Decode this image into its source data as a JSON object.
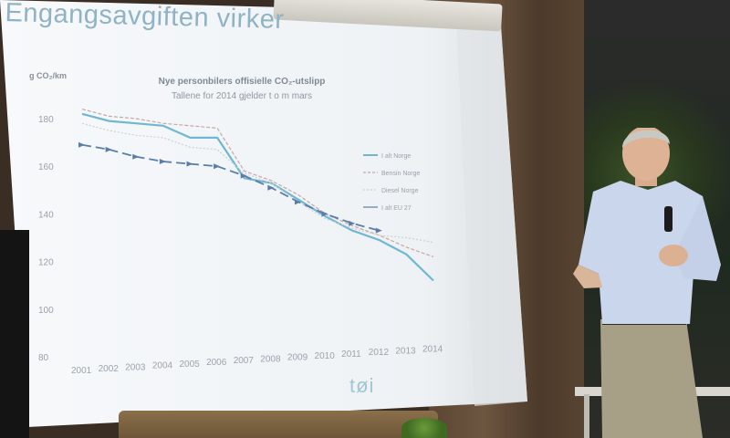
{
  "slide": {
    "title": "Engangsavgiften virker",
    "logo_text": "tøi",
    "chart_data": {
      "type": "line",
      "title": "Nye personbilers offisielle CO₂-utslipp",
      "subtitle": "Tallene for 2014 gjelder t o m mars",
      "ylabel": "g CO₂/km",
      "xlabel": "",
      "ylim": [
        80,
        190
      ],
      "yticks": [
        180,
        160,
        140,
        120,
        100,
        80
      ],
      "categories": [
        "2001",
        "2002",
        "2003",
        "2004",
        "2005",
        "2006",
        "2007",
        "2008",
        "2009",
        "2010",
        "2011",
        "2012",
        "2013",
        "2014"
      ],
      "series": [
        {
          "name": "I alt Norge",
          "color": "#6fb7d2",
          "values": [
            182,
            179,
            178,
            177,
            172,
            172,
            155,
            153,
            146,
            139,
            133,
            129,
            123,
            112
          ]
        },
        {
          "name": "Bensin Norge",
          "color": "#c9a6a6",
          "values": [
            184,
            181,
            180,
            178,
            177,
            176,
            158,
            154,
            148,
            140,
            135,
            131,
            126,
            122
          ]
        },
        {
          "name": "Diesel Norge",
          "color": "#cfcfcf",
          "values": [
            178,
            175,
            173,
            172,
            168,
            167,
            157,
            153,
            145,
            138,
            134,
            131,
            130,
            128
          ]
        },
        {
          "name": "I alt EU 27",
          "color": "#5b7ea8",
          "values": [
            169,
            167,
            164,
            162,
            161,
            160,
            156,
            151,
            145,
            140,
            136,
            133,
            null,
            null
          ]
        }
      ],
      "grid": false,
      "legend": "right"
    }
  }
}
